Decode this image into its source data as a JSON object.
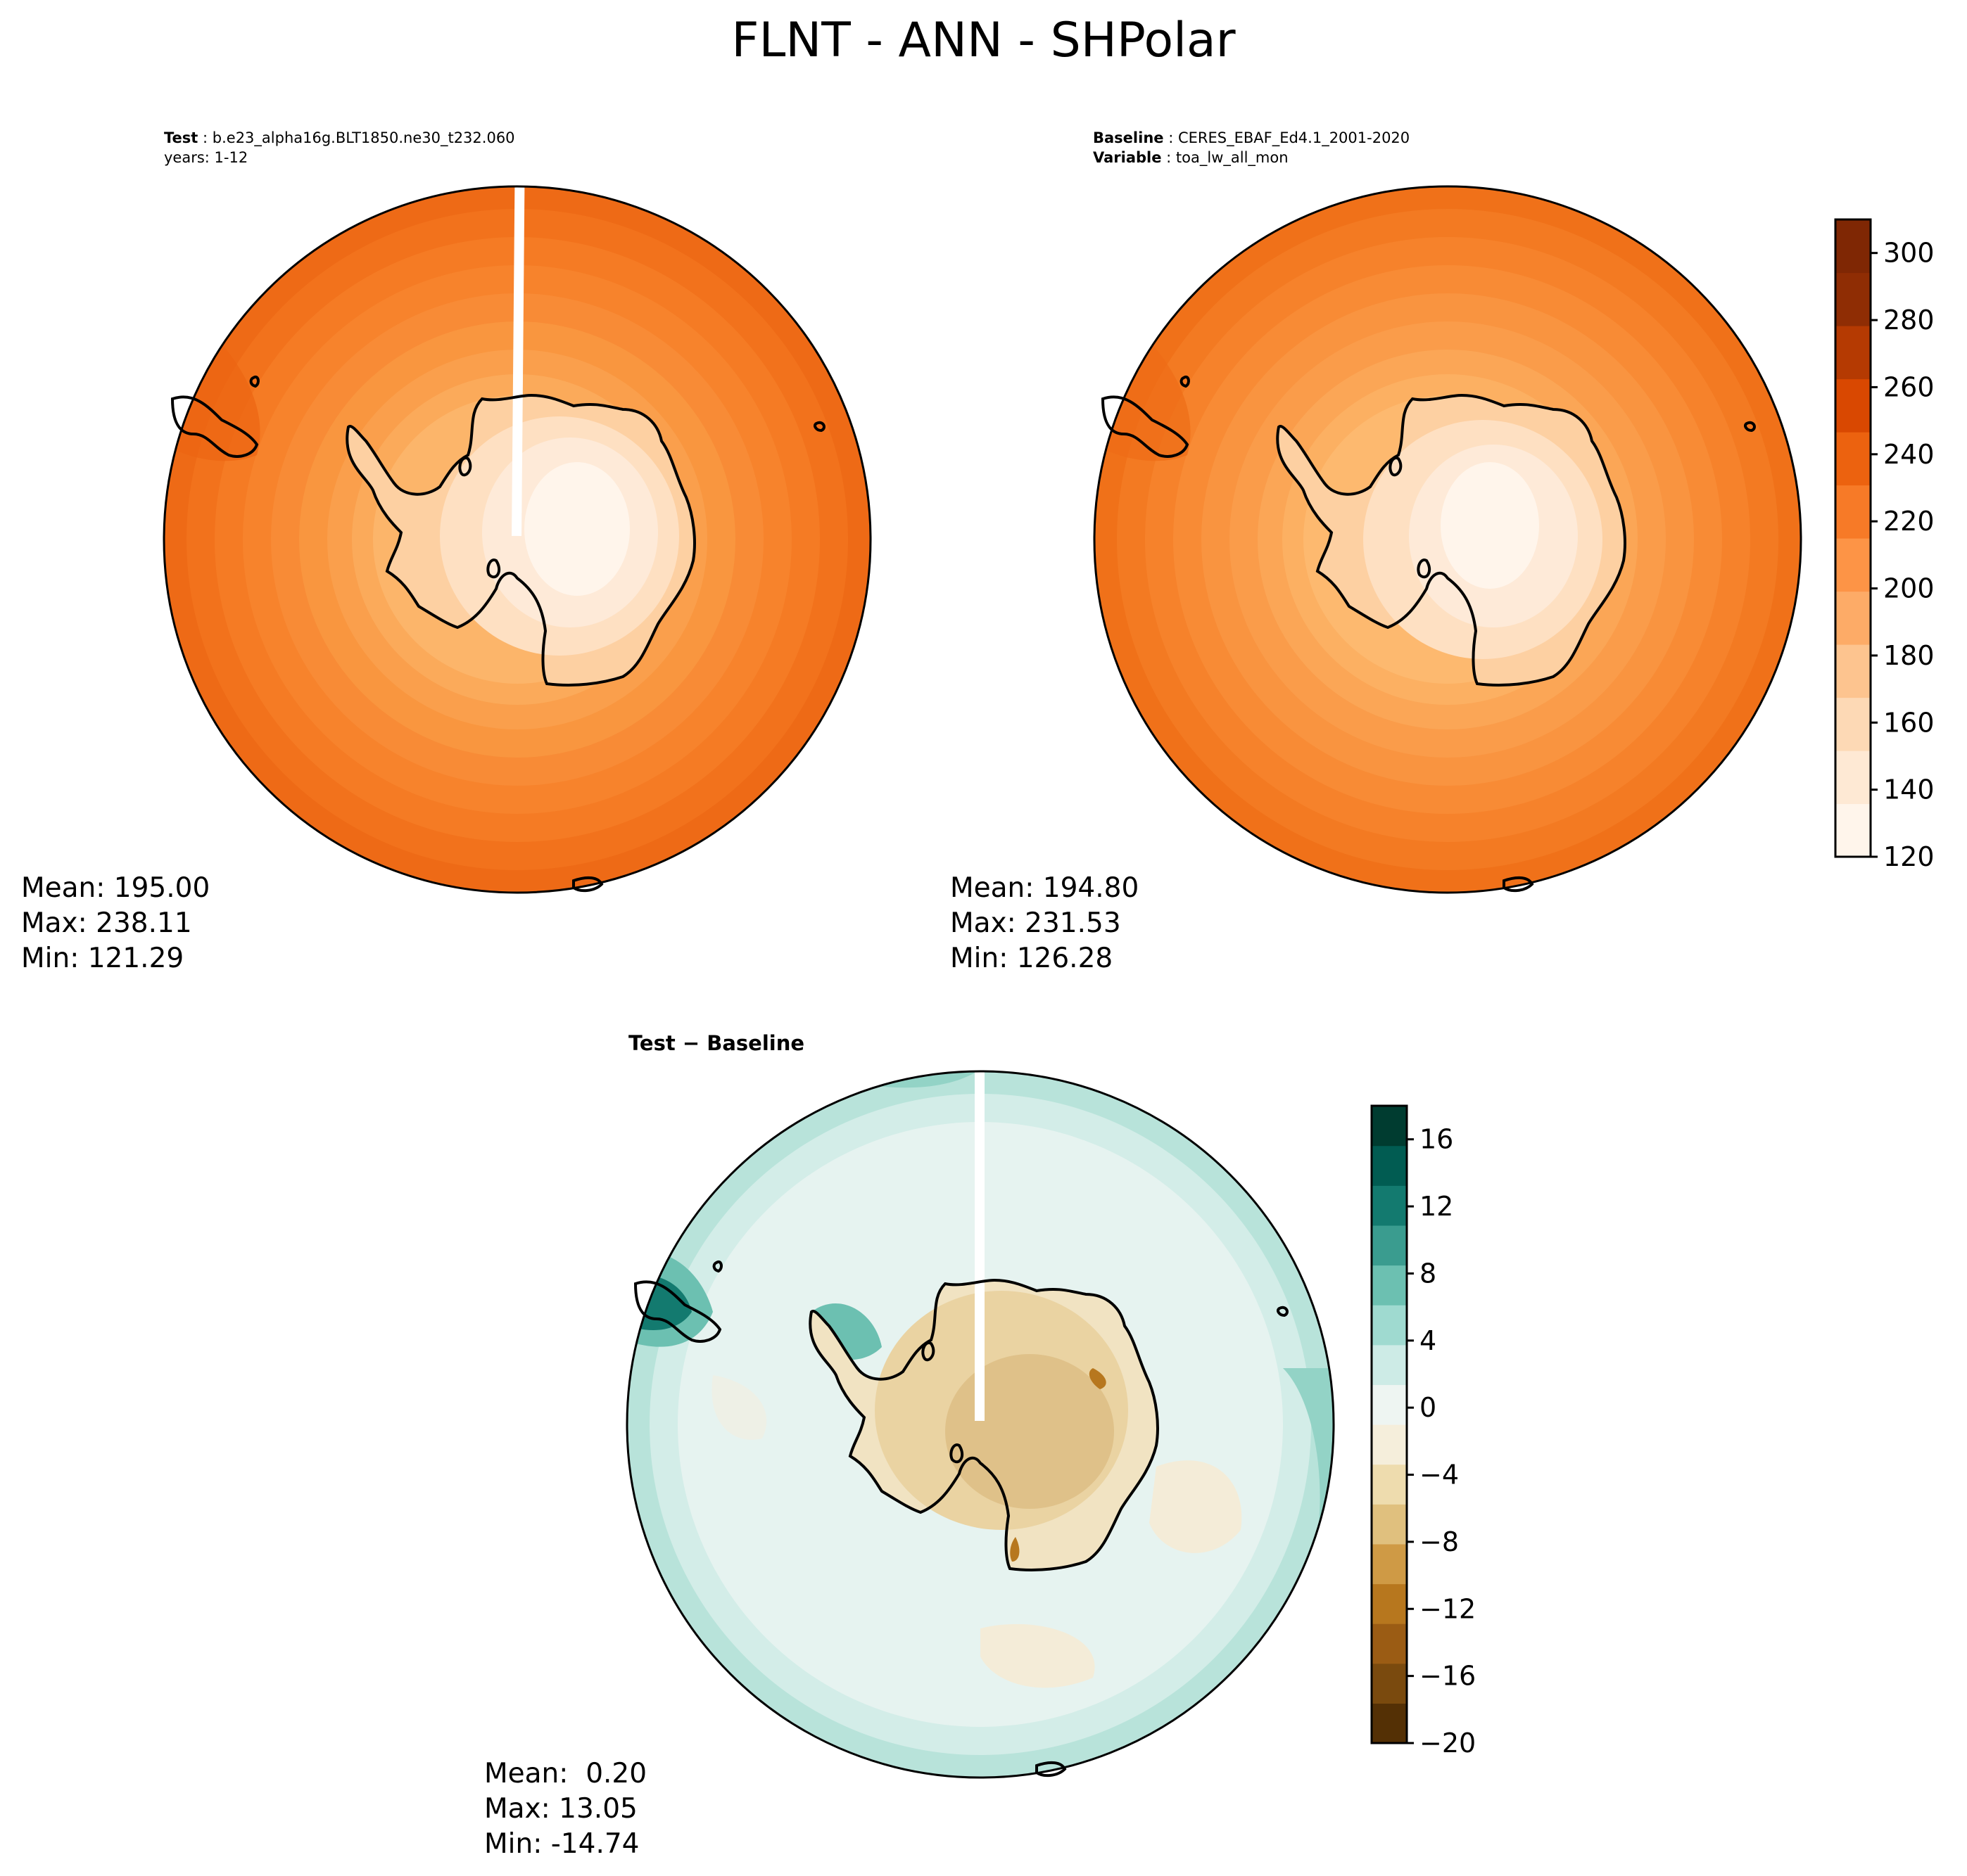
{
  "figure": {
    "title": "FLNT - ANN - SHPolar"
  },
  "panels": {
    "test": {
      "label": "Test",
      "name": "b.e23_alpha16g.BLT1850.ne30_t232.060",
      "years": "years: 1-12",
      "mean": "Mean: 195.00",
      "max": "Max: 238.11",
      "min": "Min: 121.29"
    },
    "baseline": {
      "label": "Baseline",
      "name": "CERES_EBAF_Ed4.1_2001-2020",
      "variable_label": "Variable",
      "variable": "toa_lw_all_mon",
      "mean": "Mean: 194.80",
      "max": "Max: 231.53",
      "min": "Min: 126.28"
    },
    "diff": {
      "title": "Test − Baseline",
      "mean": "Mean:  0.20",
      "max": "Max: 13.05",
      "min": "Min: -14.74"
    }
  },
  "colorbars": {
    "main": {
      "ticks": [
        "120",
        "140",
        "160",
        "180",
        "200",
        "220",
        "240",
        "260",
        "280",
        "300"
      ],
      "range": [
        120,
        310
      ],
      "colormap": "Oranges",
      "levels": [
        "#fff5eb",
        "#fee9d4",
        "#fdd9b5",
        "#fdc48f",
        "#fdab67",
        "#fd9446",
        "#f77a27",
        "#ec620f",
        "#d94801",
        "#b53a02",
        "#8f2d04",
        "#7f2704"
      ]
    },
    "diff": {
      "ticks": [
        "16",
        "12",
        "8",
        "4",
        "0",
        "−4",
        "−8",
        "−12",
        "−16",
        "−20"
      ],
      "range": [
        -20,
        18
      ],
      "colormap": "BrBG",
      "levels": [
        "#543005",
        "#7a4a0e",
        "#9b5c14",
        "#b7771e",
        "#cf9a45",
        "#e0c07e",
        "#eedcae",
        "#f5eedb",
        "#eef5f2",
        "#cdebe6",
        "#9fdad0",
        "#6cc0b1",
        "#3a9c8f",
        "#137a6f",
        "#015c52",
        "#003c30"
      ]
    }
  },
  "map_colors": {
    "test_rings": [
      "#ee6a16",
      "#f2721c",
      "#f57b24",
      "#f7832c",
      "#f88b36",
      "#f9963f",
      "#fa9f4c",
      "#fbaa5a",
      "#fcb56a"
    ],
    "baseline_rings": [
      "#f07119",
      "#f37a22",
      "#f6822b",
      "#f88b35",
      "#f99440",
      "#fa9c4a",
      "#fba656",
      "#fcb062",
      "#fdb96f"
    ],
    "ice": [
      "#fdd0a2",
      "#fee0c2",
      "#feead8",
      "#fff5eb"
    ],
    "diff_ocean": [
      "#e6f3f0",
      "#d3ede8",
      "#b8e3da",
      "#93d3c6"
    ],
    "diff_ice": [
      "#f4e6c6",
      "#ead3a2",
      "#dfc189"
    ],
    "coast": "#000000"
  }
}
